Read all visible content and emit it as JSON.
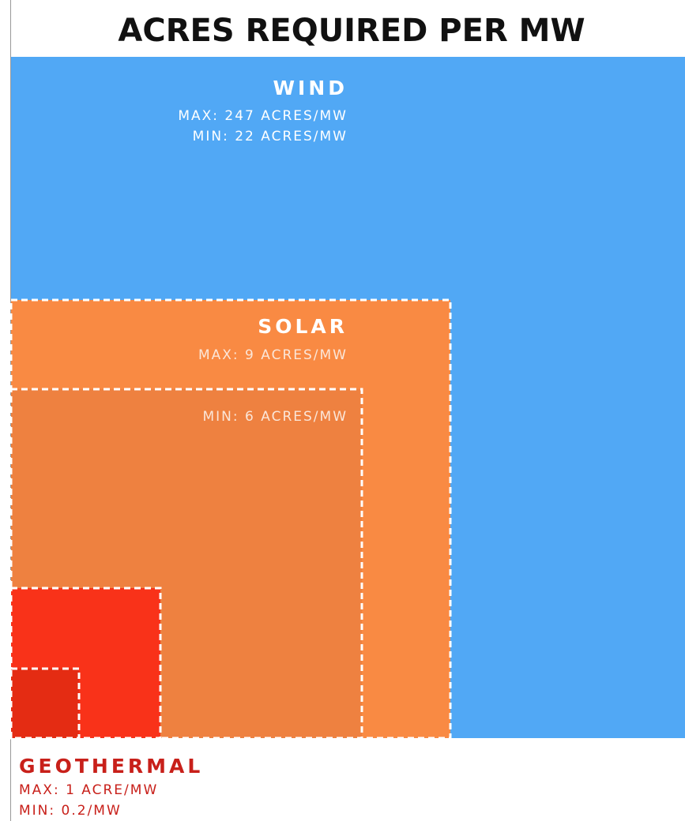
{
  "title": "ACRES REQUIRED PER MW",
  "wind": {
    "label": "WIND",
    "max": "MAX: 247 ACRES/MW",
    "min": "MIN: 22 ACRES/MW"
  },
  "solar": {
    "label": "SOLAR",
    "max": "MAX: 9 ACRES/MW",
    "min": "MIN: 6 ACRES/MW"
  },
  "geothermal": {
    "label": "GEOTHERMAL",
    "max": "MAX: 1 ACRE/MW",
    "min": "MIN: 0.2/MW"
  }
}
